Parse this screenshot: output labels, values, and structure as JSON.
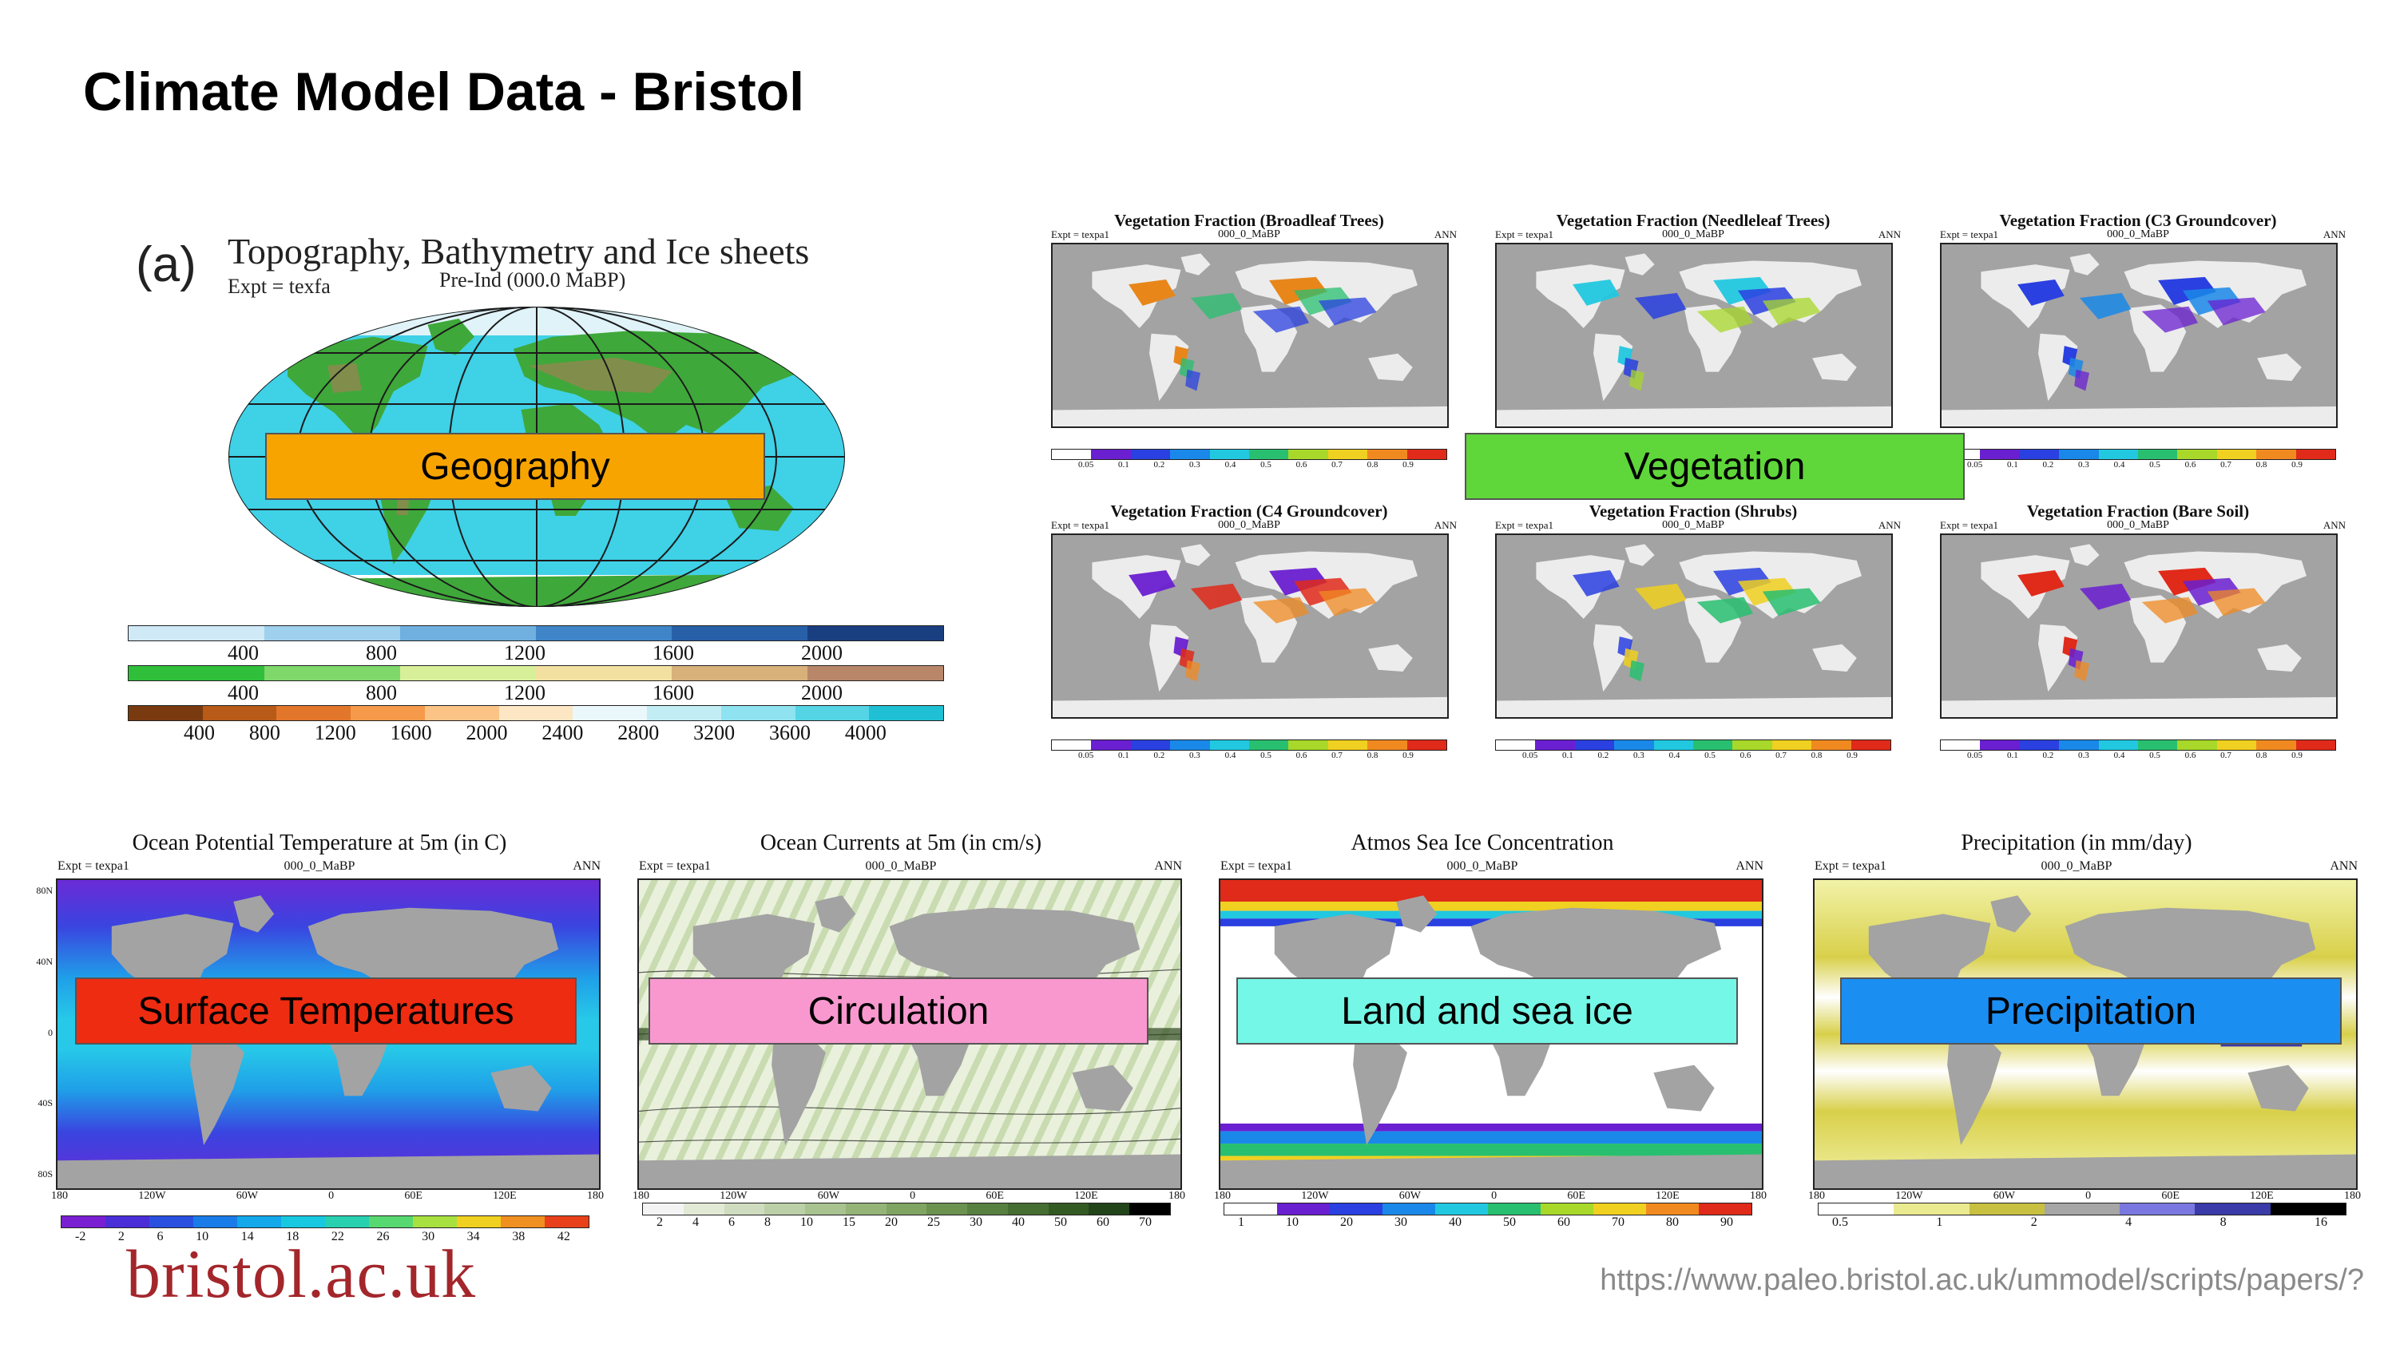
{
  "slide": {
    "title": "Climate Model Data - Bristol",
    "logo": "bristol.ac.uk",
    "url": "https://www.paleo.bristol.ac.uk/ummodel/scripts/papers/?"
  },
  "labels": {
    "geography": "Geography",
    "vegetation": "Vegetation",
    "surface_temps": "Surface Temperatures",
    "circulation": "Circulation",
    "ice": "Land and sea ice",
    "precip": "Precipitation"
  },
  "colors": {
    "geography": "#f7a400",
    "vegetation": "#5fd63a",
    "surface_temps": "#ee2c12",
    "circulation": "#f998cf",
    "ice": "#74f7e6",
    "precip": "#1b8ef2",
    "logo": "#a3262b",
    "land_grey": "#a3a3a3"
  },
  "topo": {
    "letter": "(a)",
    "title": "Topography, Bathymetry and Ice sheets",
    "expt": "Expt = texfa",
    "subtitle": "Pre-Ind (000.0 MaBP)",
    "bar1_ticks": [
      "400",
      "800",
      "1200",
      "1600",
      "2000"
    ],
    "bar2_ticks": [
      "400",
      "800",
      "1200",
      "1600",
      "2000"
    ],
    "bar3_ticks": [
      "400",
      "800",
      "1200",
      "1600",
      "2000",
      "2400",
      "2800",
      "3200",
      "3600",
      "4000"
    ]
  },
  "veg": {
    "panels": [
      {
        "title": "Vegetation Fraction (Broadleaf Trees)",
        "sub": "000_0_MaBP",
        "ann": "ANN",
        "expt": "Expt = texpa1"
      },
      {
        "title": "Vegetation Fraction (Needleleaf Trees)",
        "sub": "000_0_MaBP",
        "ann": "ANN",
        "expt": "Expt = texpa1"
      },
      {
        "title": "Vegetation Fraction (C3 Groundcover)",
        "sub": "000_0_MaBP",
        "ann": "ANN",
        "expt": "Expt = texpa1"
      },
      {
        "title": "Vegetation Fraction (C4 Groundcover)",
        "sub": "000_0_MaBP",
        "ann": "ANN",
        "expt": "Expt = texpa1"
      },
      {
        "title": "Vegetation Fraction (Shrubs)",
        "sub": "000_0_MaBP",
        "ann": "ANN",
        "expt": "Expt = texpa1"
      },
      {
        "title": "Vegetation Fraction (Bare Soil)",
        "sub": "000_0_MaBP",
        "ann": "ANN",
        "expt": "Expt = texpa1"
      }
    ],
    "ticks": [
      "0.05",
      "0.1",
      "0.2",
      "0.3",
      "0.4",
      "0.5",
      "0.6",
      "0.7",
      "0.8",
      "0.9"
    ]
  },
  "bottom": {
    "panels": [
      {
        "title": "Ocean Potential Temperature at 5m (in C)",
        "expt": "Expt = texpa1",
        "sub": "000_0_MaBP",
        "ann": "ANN",
        "ticks": [
          "-2",
          "2",
          "6",
          "10",
          "14",
          "18",
          "22",
          "26",
          "30",
          "34",
          "38",
          "42"
        ],
        "lat": [
          "80N",
          "40N",
          "0",
          "40S",
          "80S"
        ],
        "lon": [
          "180",
          "120W",
          "60W",
          "0",
          "60E",
          "120E",
          "180"
        ]
      },
      {
        "title": "Ocean Currents at 5m (in cm/s)",
        "expt": "Expt = texpa1",
        "sub": "000_0_MaBP",
        "ann": "ANN",
        "ticks": [
          "2",
          "4",
          "6",
          "8",
          "10",
          "15",
          "20",
          "25",
          "30",
          "40",
          "50",
          "60",
          "70"
        ],
        "lon": [
          "180",
          "120W",
          "60W",
          "0",
          "60E",
          "120E",
          "180"
        ]
      },
      {
        "title": "Atmos Sea Ice Concentration",
        "expt": "Expt = texpa1",
        "sub": "000_0_MaBP",
        "ann": "ANN",
        "ticks": [
          "1",
          "10",
          "20",
          "30",
          "40",
          "50",
          "60",
          "70",
          "80",
          "90"
        ],
        "lon": [
          "180",
          "120W",
          "60W",
          "0",
          "60E",
          "120E",
          "180"
        ]
      },
      {
        "title": "Precipitation (in mm/day)",
        "expt": "Expt = texpa1",
        "sub": "000_0_MaBP",
        "ann": "ANN",
        "ticks": [
          "0.5",
          "1",
          "2",
          "4",
          "8",
          "16"
        ],
        "lon": [
          "180",
          "120W",
          "60W",
          "0",
          "60E",
          "120E",
          "180"
        ]
      }
    ]
  }
}
